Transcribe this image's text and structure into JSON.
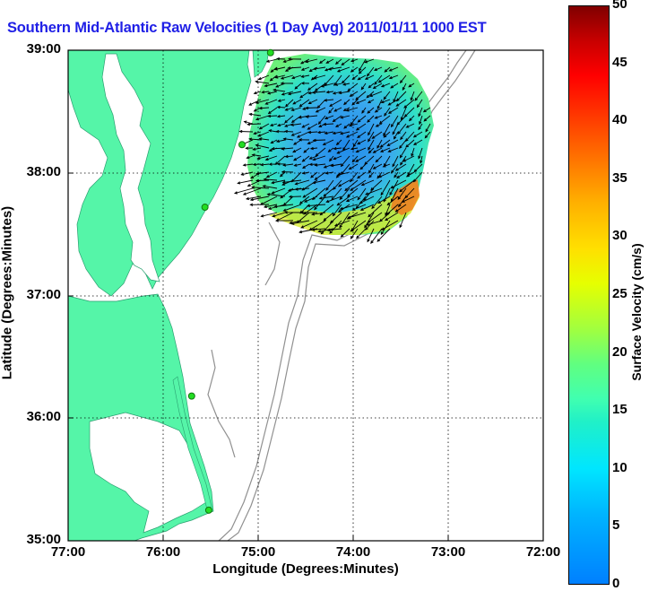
{
  "title": "Southern Mid-Atlantic Raw Velocities (1 Day Avg) 2011/01/11 1000 EST",
  "map": {
    "x_ticks": [
      "77:00",
      "76:00",
      "75:00",
      "74:00",
      "73:00",
      "72:00"
    ],
    "y_ticks": [
      "39:00",
      "38:00",
      "37:00",
      "36:00",
      "35:00"
    ],
    "xlabel": "Longitude (Degrees:Minutes)",
    "ylabel": "Latitude (Degrees:Minutes)",
    "lon_range": [
      -77,
      -72
    ],
    "lat_range": [
      35,
      39
    ],
    "land_color": "#55f5a8",
    "bathymetry_color": "#909090",
    "station_color": "#22dd22",
    "stations": [
      {
        "lon": -74.87,
        "lat": 38.98
      },
      {
        "lon": -75.17,
        "lat": 38.23
      },
      {
        "lon": -75.56,
        "lat": 37.72
      },
      {
        "lon": -75.7,
        "lat": 36.18
      },
      {
        "lon": -75.52,
        "lat": 35.25
      }
    ],
    "grid": true
  },
  "colorbar": {
    "label": "Surface Velocity (cm/s)",
    "ticks": [
      "0",
      "5",
      "10",
      "15",
      "20",
      "25",
      "30",
      "35",
      "40",
      "45",
      "50"
    ],
    "range": [
      0,
      50
    ],
    "colormap": "jet"
  }
}
